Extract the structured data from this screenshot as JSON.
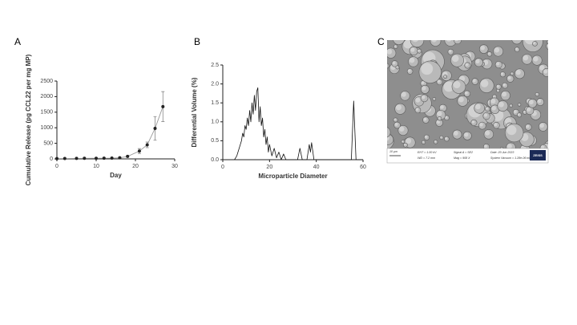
{
  "chart_data": [
    {
      "type": "line",
      "panel_label": "A",
      "ylabel": "Cumulative Release (pg CCL22 per mg MP)",
      "xlabel": "Day",
      "xlim": [
        0,
        30
      ],
      "xticks": [
        0,
        10,
        20,
        30
      ],
      "ylim": [
        0,
        2500
      ],
      "yticks": [
        0,
        500,
        1000,
        1500,
        2000,
        2500
      ],
      "x": [
        0,
        2,
        5,
        7,
        10,
        12,
        14,
        16,
        18,
        21,
        23,
        25,
        27
      ],
      "series": [
        {
          "color": "#222222",
          "line_color": "#999999",
          "error_color": "#888888",
          "markers": true,
          "values": [
            10,
            12,
            15,
            18,
            20,
            22,
            25,
            35,
            80,
            250,
            450,
            980,
            1680
          ],
          "errors": [
            5,
            5,
            5,
            5,
            5,
            5,
            5,
            10,
            20,
            80,
            90,
            380,
            480
          ]
        }
      ]
    },
    {
      "type": "line",
      "panel_label": "B",
      "ylabel": "Differential Volume (%)",
      "xlabel": "Microparticle Diameter",
      "xlim": [
        0,
        60
      ],
      "xticks": [
        0,
        20,
        40,
        60
      ],
      "ylim": [
        0,
        2.5
      ],
      "yticks": [
        {
          "value": 0,
          "label": "0.0"
        },
        0.5,
        {
          "value": 1,
          "label": "1.0"
        },
        1.5,
        {
          "value": 2,
          "label": "2.0"
        },
        2.5
      ],
      "x": [
        5,
        6,
        7,
        8,
        8.5,
        9,
        9.5,
        10,
        10.5,
        11,
        11.5,
        12,
        12.5,
        13,
        13.5,
        14,
        14.5,
        15,
        15.5,
        16,
        16.5,
        17,
        17.5,
        18,
        18.5,
        19,
        19.5,
        20,
        21,
        22,
        23,
        24,
        25,
        26,
        27,
        32,
        33,
        34,
        36,
        37,
        37.5,
        38,
        39,
        55,
        56,
        57,
        60
      ],
      "series": [
        {
          "color": "#111111",
          "markers": false,
          "values": [
            0,
            0.1,
            0.3,
            0.5,
            0.7,
            0.6,
            0.9,
            0.8,
            1.1,
            0.9,
            1.3,
            1.0,
            1.5,
            1.2,
            1.7,
            1.3,
            1.8,
            1.9,
            1.0,
            1.4,
            0.9,
            1.1,
            0.6,
            0.8,
            0.4,
            0.6,
            0.2,
            0.4,
            0.1,
            0.3,
            0.05,
            0.2,
            0,
            0.15,
            0,
            0,
            0.3,
            0,
            0,
            0.4,
            0.2,
            0.45,
            0,
            0,
            1.55,
            0,
            0
          ]
        }
      ]
    }
  ],
  "sem_image": {
    "panel_label": "C",
    "scale_bar": "10 µm",
    "info": [
      "EHT = 1.00 kV",
      "WD = 7.2 mm",
      "Signal A = SE2",
      "Mag = 908 X",
      "Date :20 Jun 2023",
      "System Vacuum = 1.28e-06 mbar"
    ],
    "logo": "ZEISS"
  }
}
